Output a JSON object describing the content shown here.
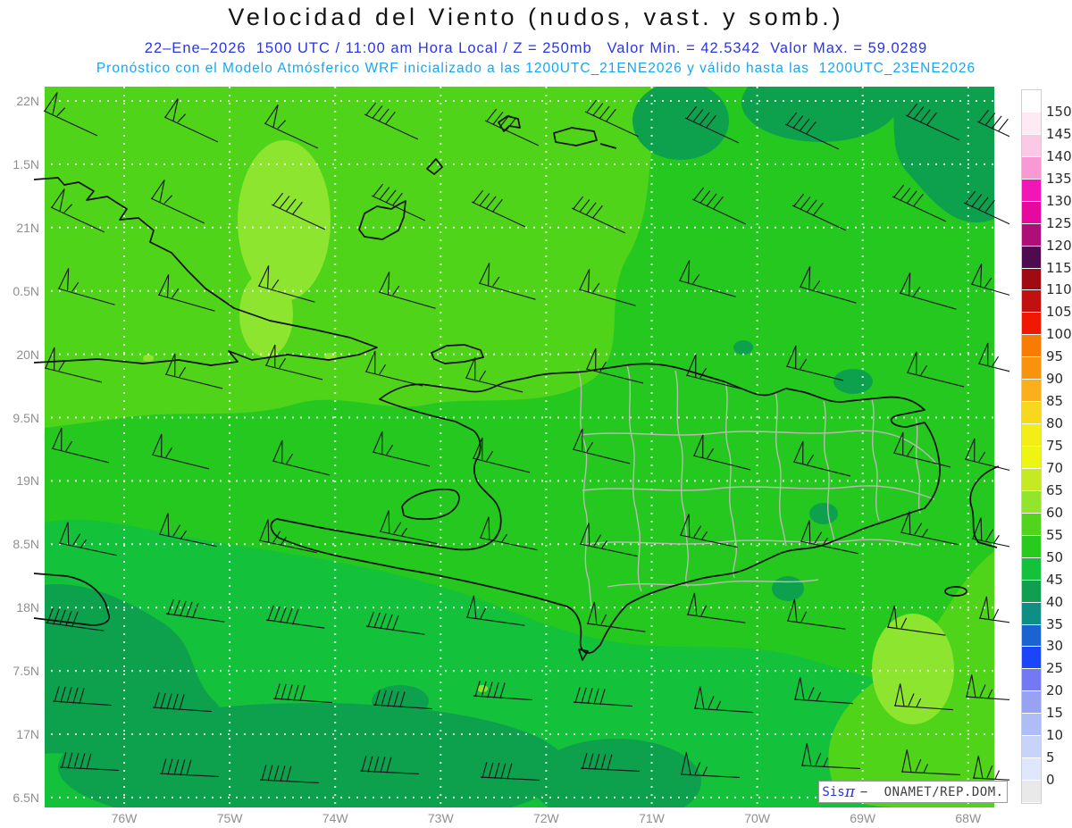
{
  "header": {
    "title": "Velocidad del Viento (nudos, vast. y somb.)",
    "line1": "22–Ene–2026  1500 UTC / 11:00 am Hora Local / Z = 250mb   Valor Min. = 42.5342  Valor Max. = 59.0289",
    "line2": "Pronóstico con el Modelo Atmósferico WRF inicializado a las 1200UTC_21ENE2026 y válido hasta las  1200UTC_23ENE2026"
  },
  "map_info": {
    "variable": "Velocidad del Viento",
    "units": "nudos",
    "level": "250mb",
    "date": "22-Ene-2026",
    "hour_utc": "1500 UTC",
    "hora_local": "11:00 am",
    "valor_min": "42.5342",
    "valor_max": "59.0289",
    "model": "WRF",
    "init": "1200UTC_21ENE2026",
    "valid": "1200UTC_23ENE2026"
  },
  "axes": {
    "lat": [
      "22N",
      "1.5N",
      "21N",
      "0.5N",
      "20N",
      "9.5N",
      "19N",
      "8.5N",
      "18N",
      "7.5N",
      "17N",
      "6.5N"
    ],
    "lon": [
      "76W",
      "75W",
      "74W",
      "73W",
      "72W",
      "71W",
      "70W",
      "69W",
      "68W"
    ]
  },
  "colorbar": {
    "labels": [
      "150",
      "145",
      "140",
      "135",
      "130",
      "125",
      "120",
      "115",
      "110",
      "105",
      "100",
      "95",
      "90",
      "85",
      "80",
      "75",
      "70",
      "65",
      "60",
      "55",
      "50",
      "45",
      "40",
      "35",
      "30",
      "25",
      "20",
      "15",
      "10",
      "5",
      "0"
    ],
    "colors": [
      "#ffffff",
      "#fdeaf2",
      "#fbc9e6",
      "#f898d4",
      "#f216b6",
      "#e509a0",
      "#ad0e78",
      "#4f0b50",
      "#9e0b10",
      "#c11010",
      "#f01800",
      "#f87c02",
      "#f9930e",
      "#fbb01b",
      "#f7d81c",
      "#f3ee16",
      "#edf613",
      "#c6e923",
      "#93e42c",
      "#52d41c",
      "#29ca1e",
      "#13c13b",
      "#0f9f4f",
      "#0f8e84",
      "#1a63d0",
      "#1b45f8",
      "#7279f2",
      "#98a2f3",
      "#afbdf6",
      "#c7d3f9",
      "#dfe7fc",
      "#e9e9e9"
    ]
  },
  "shading": {
    "band_40_45": "#0da14d",
    "band_45_50": "#13c13b",
    "band_50_55": "#24c81e",
    "band_55_60": "#4fd41a",
    "band_60_65": "#8de52f"
  },
  "watermark": {
    "sis": "Sis",
    "pi": "π",
    "rest": "−  ONAMET/REP.DOM."
  }
}
